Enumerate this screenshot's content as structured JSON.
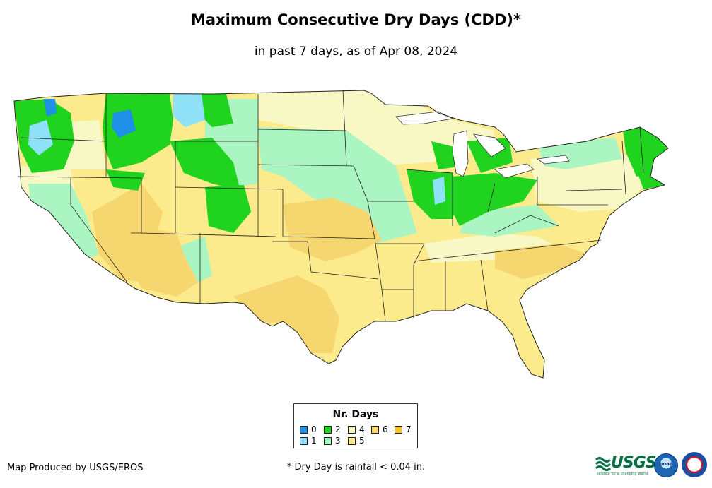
{
  "header": {
    "title": "Maximum Consecutive Dry Days (CDD)*",
    "subtitle": "in past 7 days, as of Apr 08, 2024"
  },
  "legend": {
    "title": "Nr. Days",
    "items": [
      {
        "label": "0",
        "color": "#1e90e6"
      },
      {
        "label": "1",
        "color": "#8fe1f8"
      },
      {
        "label": "2",
        "color": "#1fd31f"
      },
      {
        "label": "3",
        "color": "#aaf5c1"
      },
      {
        "label": "4",
        "color": "#f8f8c4"
      },
      {
        "label": "5",
        "color": "#fbeb8c"
      },
      {
        "label": "6",
        "color": "#f6d66e"
      },
      {
        "label": "7",
        "color": "#f9c22c"
      }
    ]
  },
  "footer": {
    "credit": "Map Produced by USGS/EROS",
    "footnote": "* Dry Day is rainfall < 0.04 in."
  },
  "logos": {
    "usgs": "USGS",
    "usgs_tagline": "science for a changing world",
    "noaa": "noaa"
  }
}
